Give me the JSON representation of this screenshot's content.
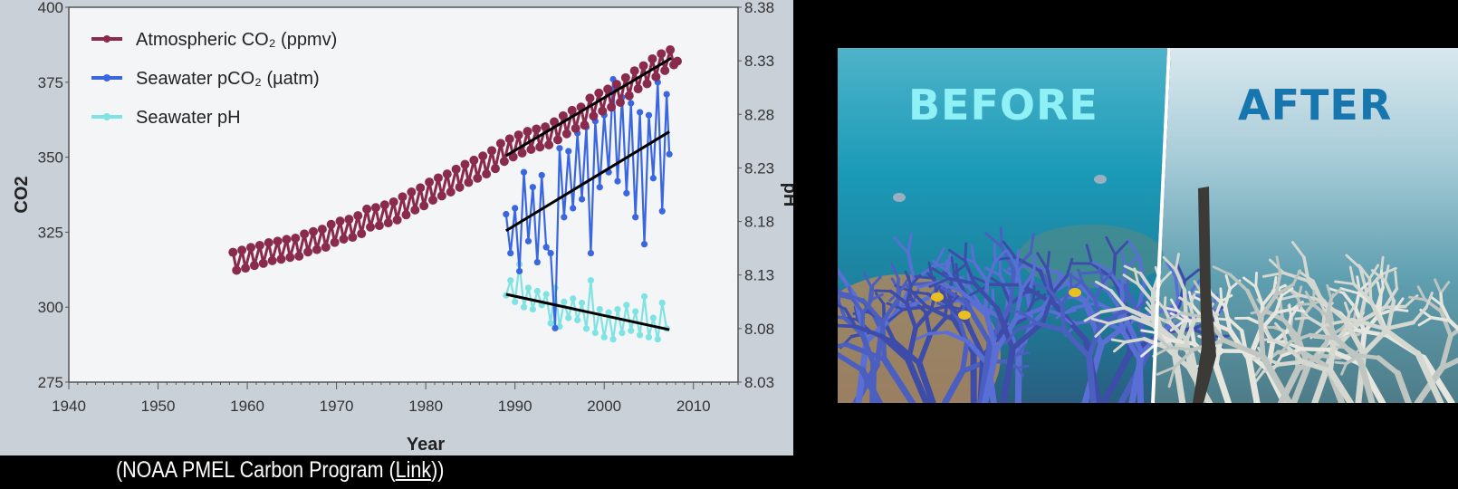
{
  "chart_data": {
    "type": "line",
    "xlabel": "Year",
    "ylabel": "CO2",
    "y2label": "pH",
    "xlim": [
      1940,
      2015
    ],
    "ylim": [
      275,
      400
    ],
    "y2lim": [
      8.03,
      8.38
    ],
    "xticks": [
      "1940",
      "1950",
      "1960",
      "1970",
      "1980",
      "1990",
      "2000",
      "2010"
    ],
    "yticks": [
      "275",
      "300",
      "325",
      "350",
      "375",
      "400"
    ],
    "y2ticks": [
      "8.03",
      "8.08",
      "8.13",
      "8.18",
      "8.23",
      "8.28",
      "8.33",
      "8.38"
    ],
    "grid": false,
    "legend_placement": "top-left",
    "series": [
      {
        "name": "Atmospheric CO₂ (ppmv)",
        "axis": "left",
        "color": "#8a2a4c",
        "points": [
          [
            1958.4,
            318.3
          ],
          [
            1958.8,
            312.3
          ],
          [
            1959.4,
            319.0
          ],
          [
            1959.8,
            313.0
          ],
          [
            1960.4,
            319.9
          ],
          [
            1960.8,
            313.9
          ],
          [
            1961.4,
            320.6
          ],
          [
            1961.8,
            314.6
          ],
          [
            1962.4,
            321.5
          ],
          [
            1962.8,
            315.5
          ],
          [
            1963.4,
            322.0
          ],
          [
            1963.8,
            316.0
          ],
          [
            1964.4,
            322.6
          ],
          [
            1964.8,
            316.6
          ],
          [
            1965.4,
            323.0
          ],
          [
            1965.8,
            317.0
          ],
          [
            1966.4,
            324.4
          ],
          [
            1966.8,
            318.4
          ],
          [
            1967.4,
            325.2
          ],
          [
            1967.8,
            319.2
          ],
          [
            1968.4,
            326.0
          ],
          [
            1968.8,
            320.0
          ],
          [
            1969.4,
            327.6
          ],
          [
            1969.8,
            321.6
          ],
          [
            1970.4,
            328.7
          ],
          [
            1970.8,
            322.7
          ],
          [
            1971.4,
            329.3
          ],
          [
            1971.8,
            323.3
          ],
          [
            1972.4,
            330.5
          ],
          [
            1972.8,
            324.5
          ],
          [
            1973.4,
            332.7
          ],
          [
            1973.8,
            326.7
          ],
          [
            1974.4,
            333.2
          ],
          [
            1974.8,
            327.2
          ],
          [
            1975.4,
            334.1
          ],
          [
            1975.8,
            328.1
          ],
          [
            1976.4,
            335.1
          ],
          [
            1976.8,
            329.1
          ],
          [
            1977.4,
            336.8
          ],
          [
            1977.8,
            330.8
          ],
          [
            1978.4,
            338.4
          ],
          [
            1978.8,
            332.4
          ],
          [
            1979.4,
            339.8
          ],
          [
            1979.8,
            333.8
          ],
          [
            1980.4,
            341.7
          ],
          [
            1980.8,
            335.7
          ],
          [
            1981.4,
            343.1
          ],
          [
            1981.8,
            337.1
          ],
          [
            1982.4,
            344.4
          ],
          [
            1982.8,
            338.4
          ],
          [
            1983.4,
            346.0
          ],
          [
            1983.8,
            340.0
          ],
          [
            1984.4,
            347.6
          ],
          [
            1984.8,
            341.6
          ],
          [
            1985.4,
            349.0
          ],
          [
            1985.8,
            343.0
          ],
          [
            1986.4,
            350.4
          ],
          [
            1986.8,
            344.4
          ],
          [
            1987.4,
            352.2
          ],
          [
            1987.8,
            346.2
          ],
          [
            1988.4,
            354.6
          ],
          [
            1988.8,
            348.6
          ],
          [
            1989.4,
            356.1
          ],
          [
            1989.8,
            350.1
          ],
          [
            1990.4,
            357.4
          ],
          [
            1990.8,
            351.4
          ],
          [
            1991.4,
            358.6
          ],
          [
            1991.8,
            352.6
          ],
          [
            1992.4,
            359.4
          ],
          [
            1992.8,
            353.4
          ],
          [
            1993.4,
            360.1
          ],
          [
            1993.8,
            354.1
          ],
          [
            1994.4,
            361.8
          ],
          [
            1994.8,
            355.8
          ],
          [
            1995.4,
            363.8
          ],
          [
            1995.8,
            357.8
          ],
          [
            1996.4,
            365.6
          ],
          [
            1996.8,
            359.6
          ],
          [
            1997.4,
            366.7
          ],
          [
            1997.8,
            360.7
          ],
          [
            1998.4,
            369.7
          ],
          [
            1998.8,
            363.7
          ],
          [
            1999.4,
            371.4
          ],
          [
            1999.8,
            365.4
          ],
          [
            2000.4,
            372.7
          ],
          [
            2000.8,
            366.7
          ],
          [
            2001.4,
            374.3
          ],
          [
            2001.8,
            368.3
          ],
          [
            2002.4,
            376.5
          ],
          [
            2002.8,
            370.5
          ],
          [
            2003.4,
            378.8
          ],
          [
            2003.8,
            372.8
          ],
          [
            2004.4,
            380.5
          ],
          [
            2004.8,
            374.5
          ],
          [
            2005.4,
            382.8
          ],
          [
            2005.8,
            376.8
          ],
          [
            2006.4,
            384.5
          ],
          [
            2006.8,
            378.9
          ],
          [
            2007.4,
            385.8
          ],
          [
            2007.8,
            380.8
          ],
          [
            2008.2,
            382.0
          ]
        ],
        "trend": [
          [
            1989,
            350.5
          ],
          [
            2007.5,
            383
          ]
        ]
      },
      {
        "name": "Seawater pCO₂ (µatm)",
        "axis": "left",
        "color": "#3a66e0",
        "points": [
          [
            1989.0,
            331
          ],
          [
            1989.5,
            318
          ],
          [
            1990.0,
            333
          ],
          [
            1990.5,
            312
          ],
          [
            1991.0,
            345
          ],
          [
            1991.5,
            322
          ],
          [
            1992.0,
            340
          ],
          [
            1992.5,
            315
          ],
          [
            1993.0,
            344
          ],
          [
            1993.5,
            320
          ],
          [
            1994.0,
            318
          ],
          [
            1994.5,
            293
          ],
          [
            1995.0,
            353
          ],
          [
            1995.5,
            330
          ],
          [
            1996.0,
            352
          ],
          [
            1996.5,
            333
          ],
          [
            1997.0,
            358
          ],
          [
            1997.5,
            336
          ],
          [
            1998.0,
            360
          ],
          [
            1998.5,
            318
          ],
          [
            1999.0,
            362
          ],
          [
            1999.5,
            340
          ],
          [
            2000.0,
            364
          ],
          [
            2000.5,
            345
          ],
          [
            2001.0,
            376
          ],
          [
            2001.5,
            342
          ],
          [
            2002.0,
            370
          ],
          [
            2002.5,
            338
          ],
          [
            2003.0,
            368
          ],
          [
            2003.5,
            330
          ],
          [
            2004.0,
            365
          ],
          [
            2004.5,
            321
          ],
          [
            2005.0,
            364
          ],
          [
            2005.5,
            343
          ],
          [
            2006.0,
            375
          ],
          [
            2006.5,
            332
          ],
          [
            2007.0,
            371
          ],
          [
            2007.3,
            351
          ]
        ],
        "trend": [
          [
            1989,
            325.5
          ],
          [
            2007.3,
            358.5
          ]
        ]
      },
      {
        "name": "Seawater pH",
        "axis": "right",
        "color": "#7fe3e3",
        "points": [
          [
            1989.0,
            8.111
          ],
          [
            1989.5,
            8.125
          ],
          [
            1990.0,
            8.105
          ],
          [
            1990.5,
            8.14
          ],
          [
            1991.0,
            8.1
          ],
          [
            1991.5,
            8.118
          ],
          [
            1992.0,
            8.098
          ],
          [
            1992.5,
            8.115
          ],
          [
            1993.0,
            8.102
          ],
          [
            1993.5,
            8.112
          ],
          [
            1994.0,
            8.085
          ],
          [
            1994.5,
            8.118
          ],
          [
            1995.0,
            8.082
          ],
          [
            1995.5,
            8.105
          ],
          [
            1996.0,
            8.09
          ],
          [
            1996.5,
            8.108
          ],
          [
            1997.0,
            8.088
          ],
          [
            1997.5,
            8.104
          ],
          [
            1998.0,
            8.08
          ],
          [
            1998.5,
            8.125
          ],
          [
            1999.0,
            8.076
          ],
          [
            1999.5,
            8.098
          ],
          [
            2000.0,
            8.072
          ],
          [
            2000.5,
            8.095
          ],
          [
            2001.0,
            8.07
          ],
          [
            2001.5,
            8.098
          ],
          [
            2002.0,
            8.076
          ],
          [
            2002.5,
            8.102
          ],
          [
            2003.0,
            8.078
          ],
          [
            2003.5,
            8.096
          ],
          [
            2004.0,
            8.074
          ],
          [
            2004.5,
            8.11
          ],
          [
            2005.0,
            8.072
          ],
          [
            2005.5,
            8.09
          ],
          [
            2006.0,
            8.07
          ],
          [
            2006.5,
            8.104
          ],
          [
            2007.0,
            8.08
          ]
        ],
        "trend": [
          [
            1989,
            8.112
          ],
          [
            2007.3,
            8.079
          ]
        ]
      }
    ]
  },
  "caption": {
    "prefix": "(NOAA PMEL Carbon Program (",
    "link": "Link",
    "suffix": "))"
  },
  "photo": {
    "before_label": "BEFORE",
    "after_label": "AFTER",
    "before_label_color": "#8ff0f6",
    "after_label_color": "#1776ae"
  },
  "colors": {
    "panel_bg": "#c9d0d8",
    "plot_bg": "#f4f5f7",
    "trend": "#000000"
  }
}
